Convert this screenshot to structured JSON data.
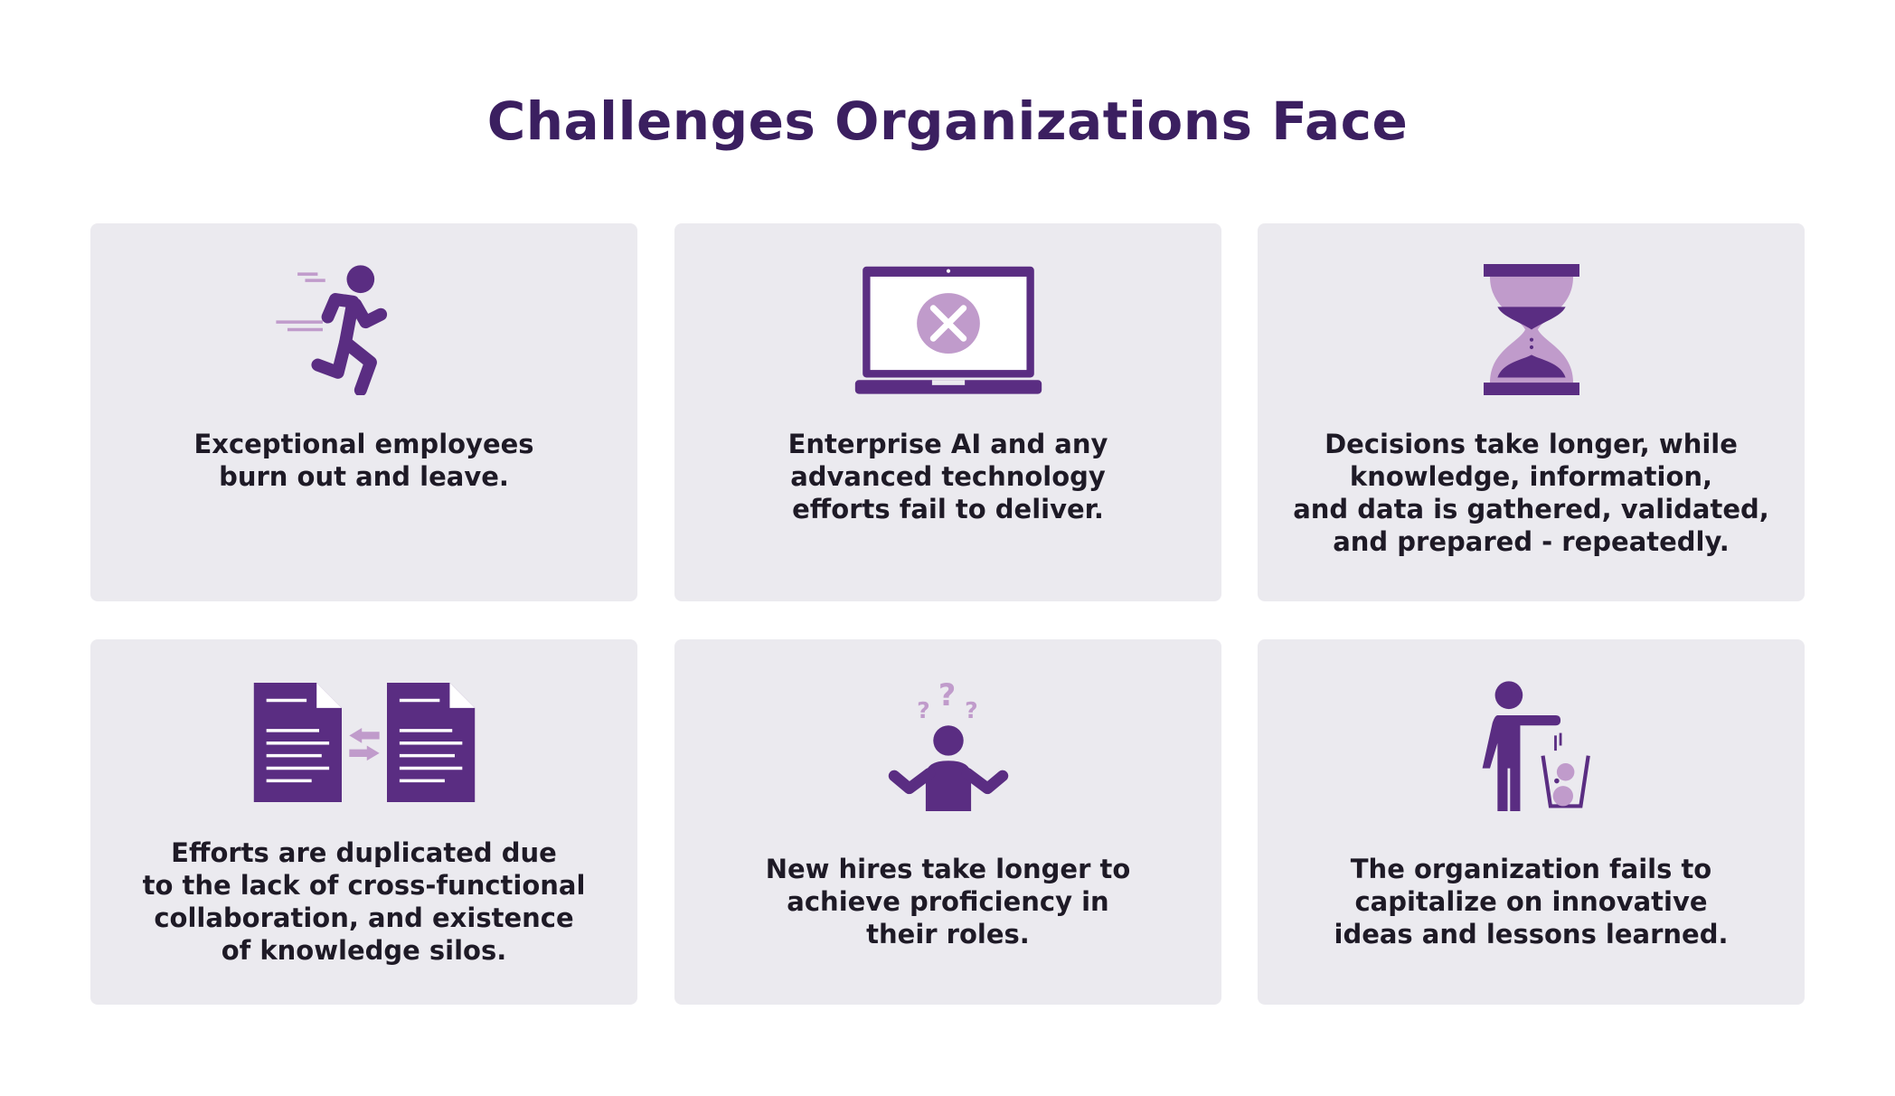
{
  "title": "Challenges Organizations Face",
  "colors": {
    "dark_purple": "#5a2d82",
    "light_purple": "#c09bcb",
    "card_bg": "#ebeaef",
    "title": "#3b1f60"
  },
  "cards": [
    {
      "icon": "running-person-icon",
      "text": "Exceptional employees\nburn out and leave."
    },
    {
      "icon": "laptop-error-icon",
      "text": "Enterprise AI and any\nadvanced technology\nefforts fail to deliver."
    },
    {
      "icon": "hourglass-icon",
      "text": "Decisions take longer, while\nknowledge, information,\nand data is gathered, validated,\nand prepared - repeatedly."
    },
    {
      "icon": "duplicate-documents-icon",
      "text": "Efforts are duplicated due\nto the lack of cross-functional\ncollaboration, and existence\nof knowledge silos."
    },
    {
      "icon": "confused-person-icon",
      "text": "New hires take longer to\nachieve proficiency in\ntheir roles."
    },
    {
      "icon": "person-discarding-lightbulbs-icon",
      "text": "The organization fails to\ncapitalize on innovative\nideas and lessons learned."
    }
  ]
}
